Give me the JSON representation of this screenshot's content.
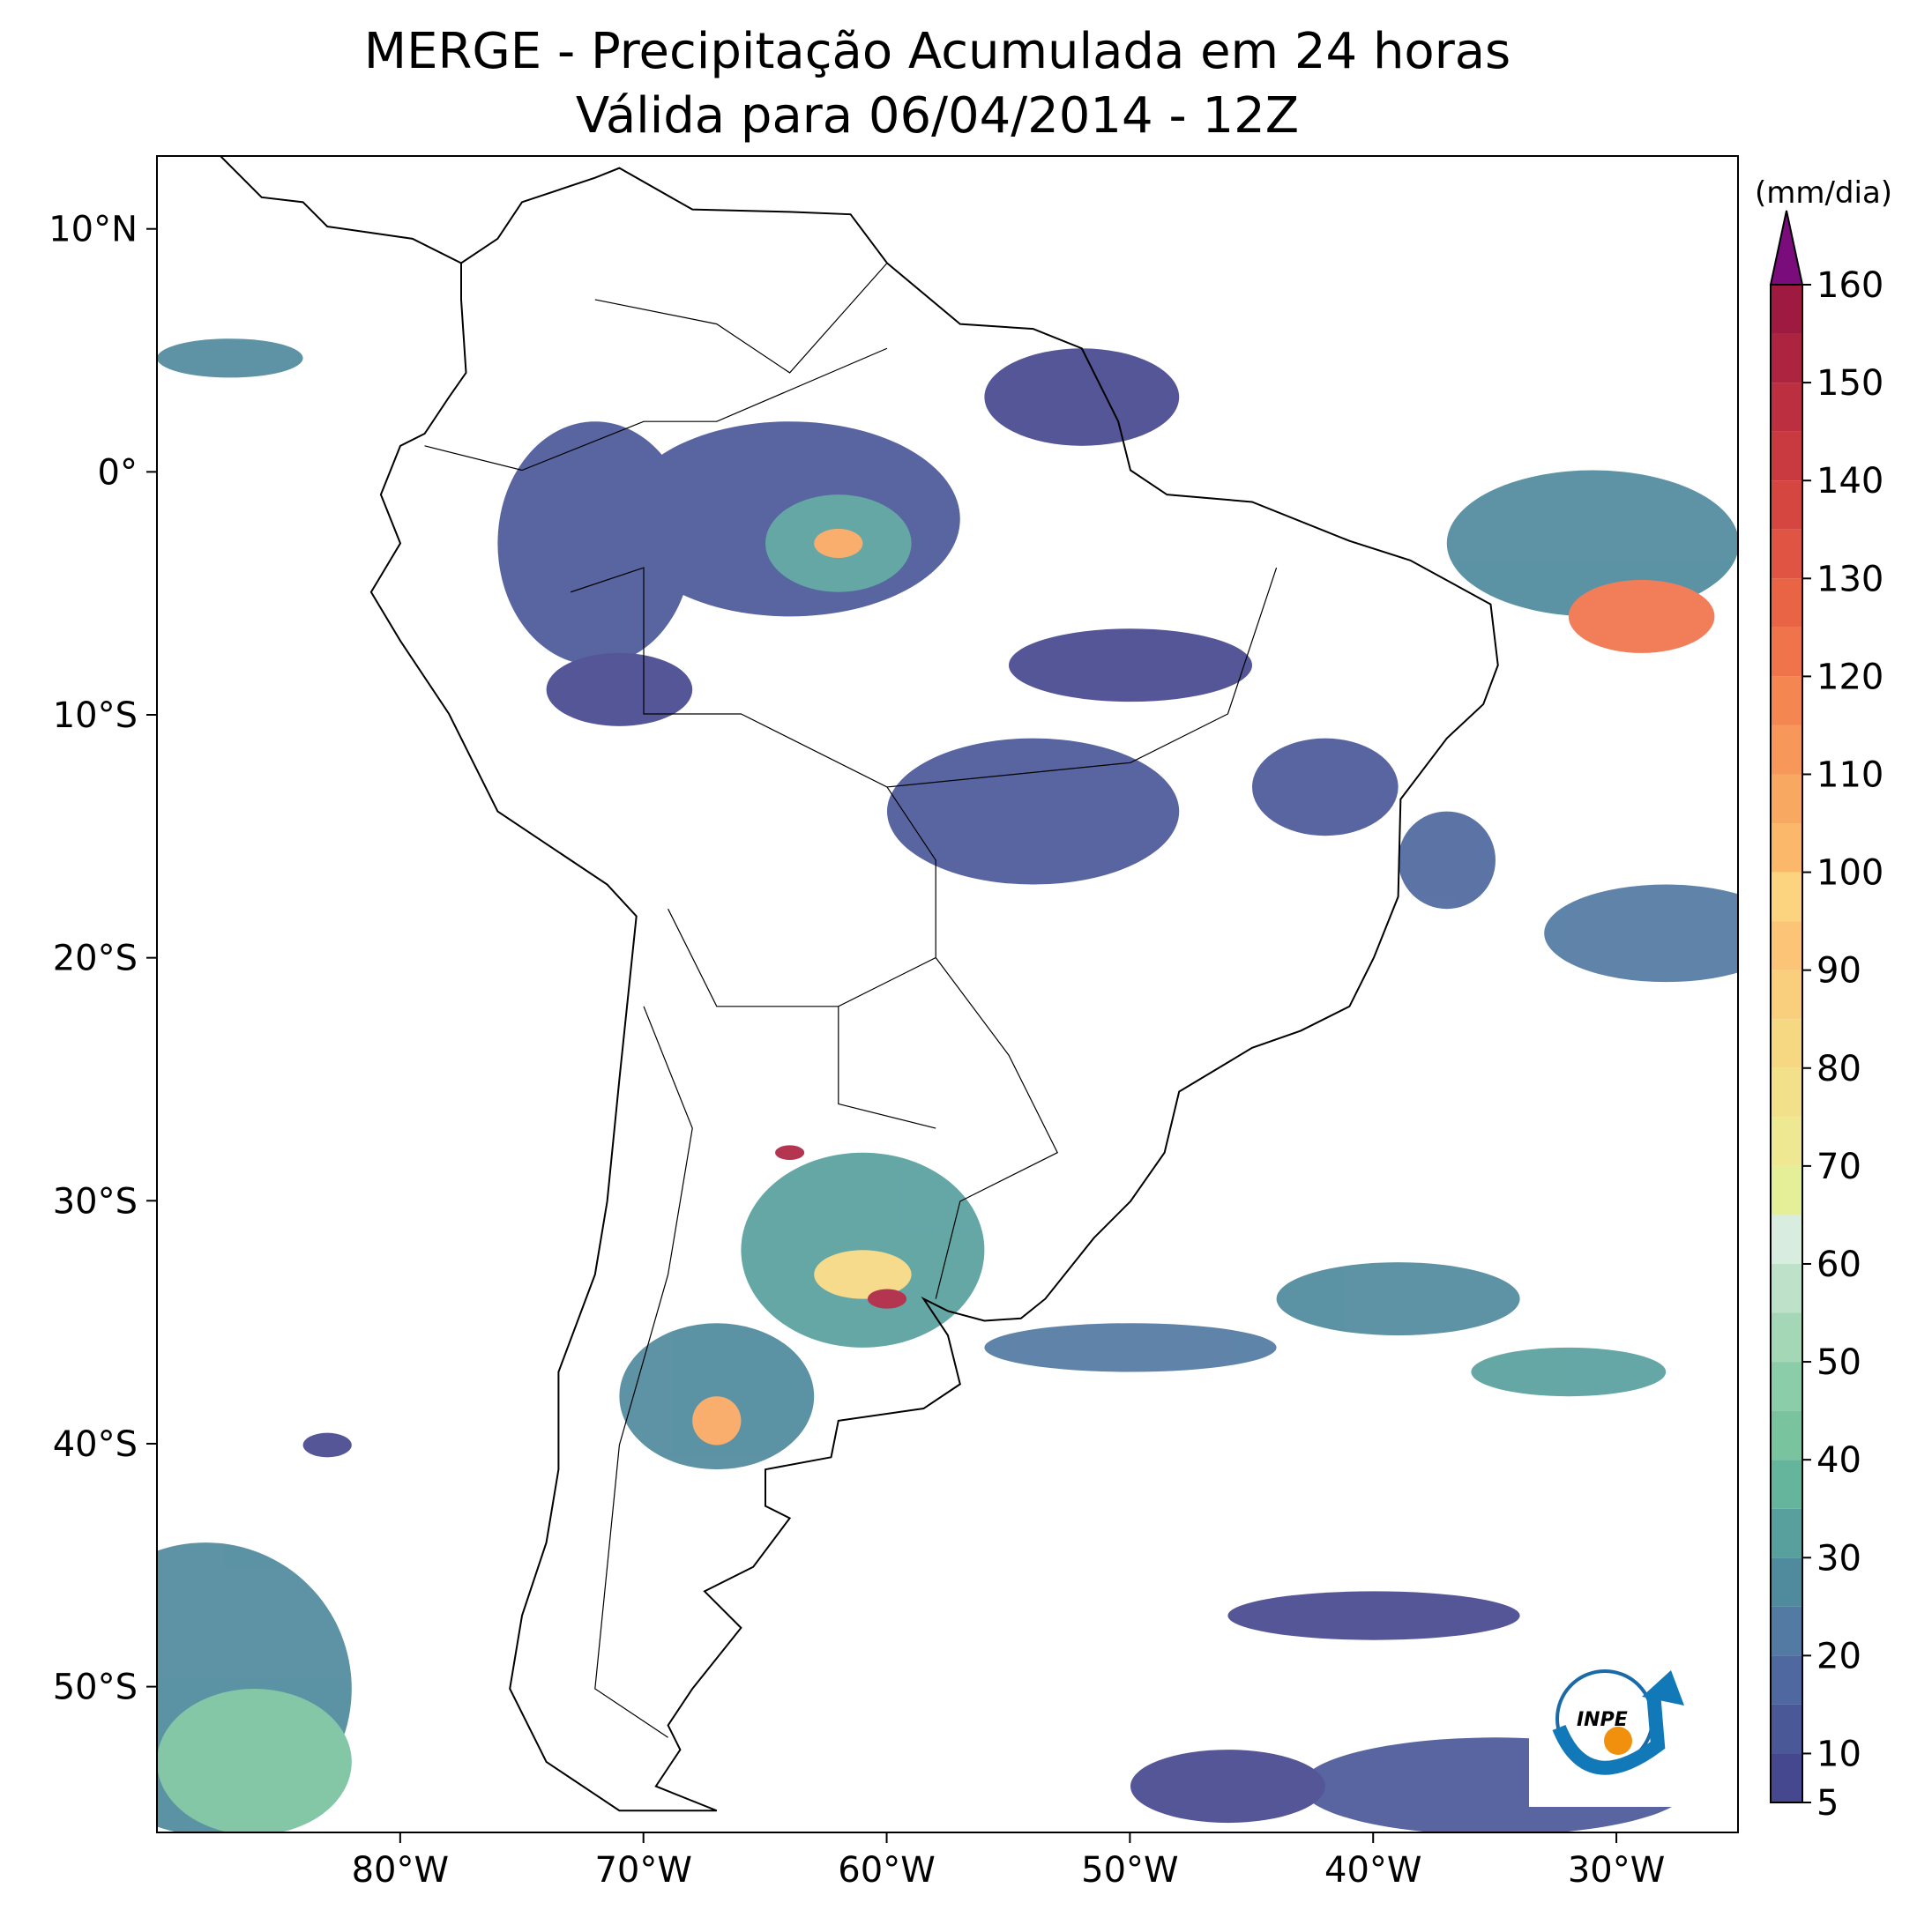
{
  "title": [
    "MERGE - Precipitação Acumulada em 24 horas",
    "Válida para 06/04/2014 - 12Z"
  ],
  "map": {
    "xlim": [
      -90,
      -25
    ],
    "ylim": [
      -56,
      13
    ],
    "xticks": [
      {
        "value": -80,
        "label": "80°W"
      },
      {
        "value": -70,
        "label": "70°W"
      },
      {
        "value": -60,
        "label": "60°W"
      },
      {
        "value": -50,
        "label": "50°W"
      },
      {
        "value": -40,
        "label": "40°W"
      },
      {
        "value": -30,
        "label": "30°W"
      }
    ],
    "yticks": [
      {
        "value": 10,
        "label": "10°N"
      },
      {
        "value": 0,
        "label": "0°"
      },
      {
        "value": -10,
        "label": "10°S"
      },
      {
        "value": -20,
        "label": "20°S"
      },
      {
        "value": -30,
        "label": "30°S"
      },
      {
        "value": -40,
        "label": "40°S"
      },
      {
        "value": -50,
        "label": "50°S"
      }
    ]
  },
  "colorbar": {
    "label": "(mm/dia)",
    "levels": [
      5,
      10,
      15,
      20,
      25,
      30,
      35,
      40,
      45,
      50,
      55,
      60,
      65,
      70,
      75,
      80,
      85,
      90,
      95,
      100,
      105,
      110,
      115,
      120,
      125,
      130,
      135,
      140,
      145,
      150,
      155,
      160
    ],
    "colors": [
      "#46488f",
      "#4a5898",
      "#4f689f",
      "#527aa2",
      "#4f8a9d",
      "#57a09e",
      "#64b59b",
      "#79c39f",
      "#8ccda9",
      "#a3d7b5",
      "#bee2c9",
      "#d8ece0",
      "#e4ef98",
      "#eee893",
      "#f2e18a",
      "#f6d883",
      "#f9ce7c",
      "#fbc476",
      "#fcd37f",
      "#fbb86a",
      "#f9a862",
      "#f7985a",
      "#f48652",
      "#f0744b",
      "#e96345",
      "#df5442",
      "#d4463f",
      "#c83a3f",
      "#bb2f40",
      "#ad2441",
      "#9e1a41"
    ],
    "extend_color": "#7b0c7b",
    "ticks": [
      5,
      10,
      20,
      30,
      40,
      50,
      60,
      70,
      80,
      90,
      100,
      110,
      120,
      130,
      140,
      150,
      160
    ]
  },
  "logo": "INPE"
}
